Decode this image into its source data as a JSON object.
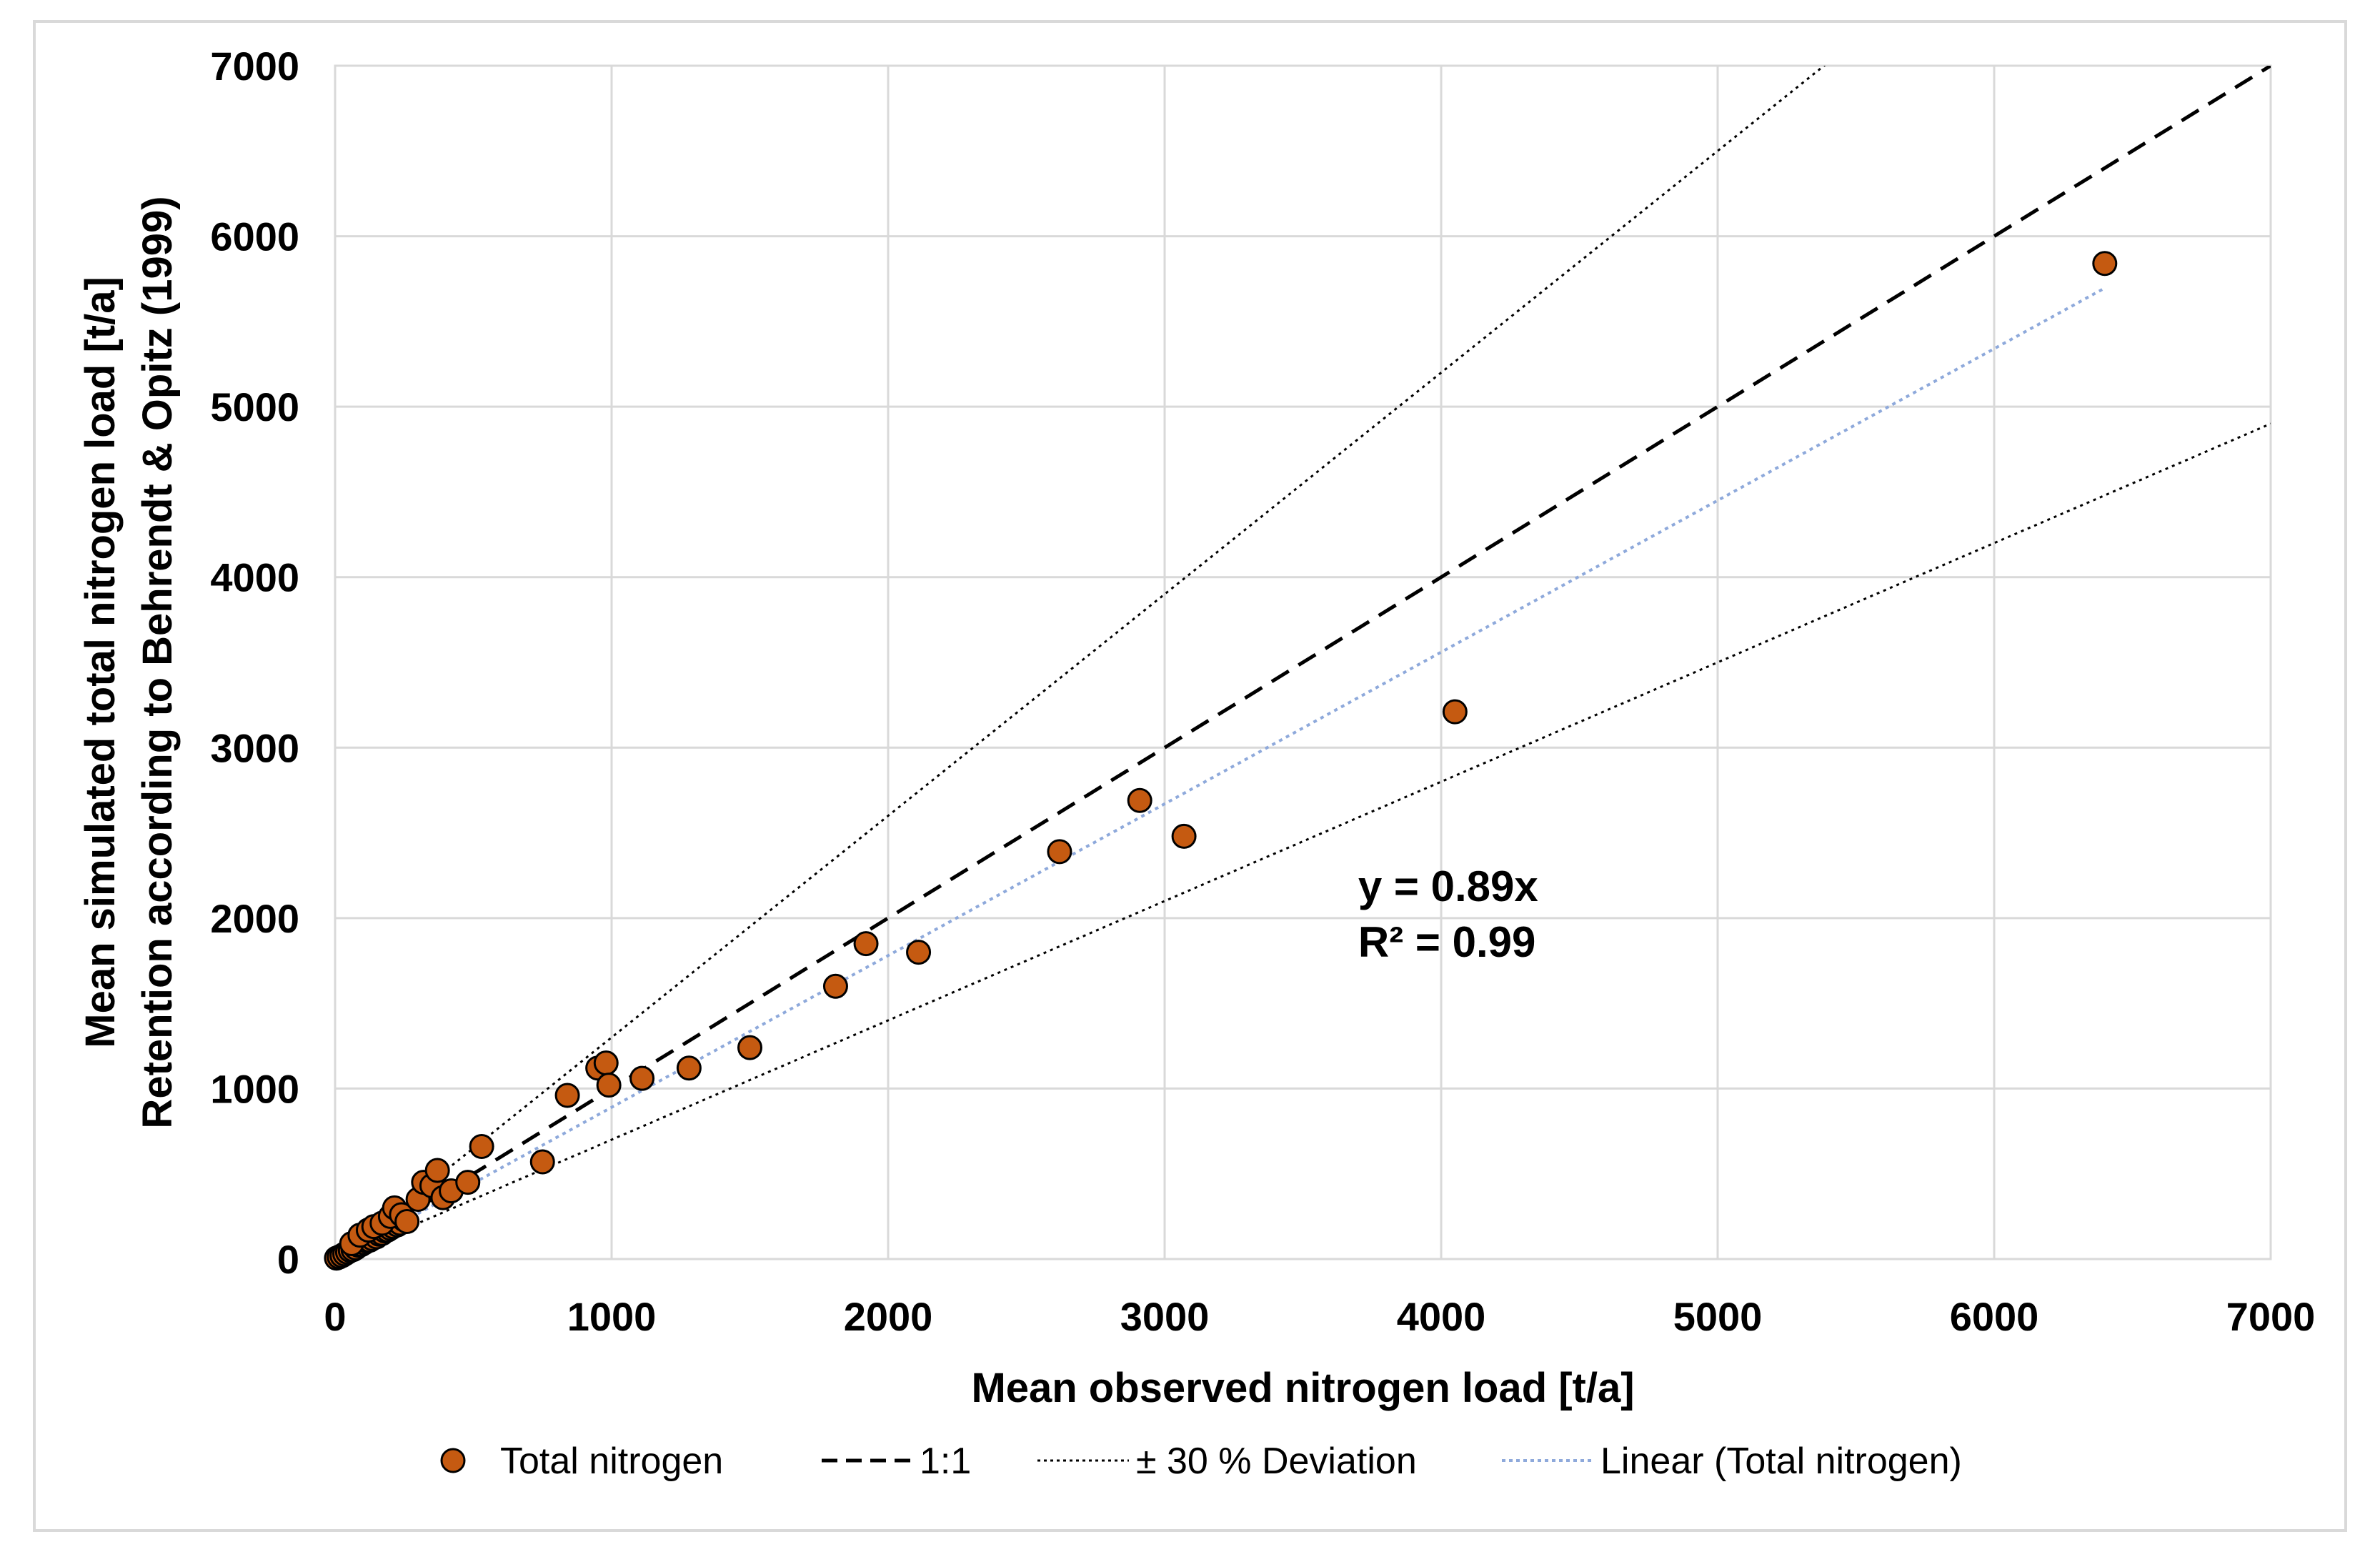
{
  "chart_data": {
    "type": "scatter",
    "title": "",
    "xlabel": "Mean observed nitrogen load [t/a]",
    "ylabel_line1": "Mean simulated total nitrogen load [t/a]",
    "ylabel_line2": "Retention according to Behrendt & Opitz (1999)",
    "xlim": [
      0,
      7000
    ],
    "ylim": [
      0,
      7000
    ],
    "xticks": [
      0,
      1000,
      2000,
      3000,
      4000,
      5000,
      6000,
      7000
    ],
    "yticks": [
      0,
      1000,
      2000,
      3000,
      4000,
      5000,
      6000,
      7000
    ],
    "grid": true,
    "legend_position": "bottom",
    "annotation": {
      "equation": "y = 0.89x",
      "r2": "R² = 0.99",
      "x": 3700,
      "y": 2100
    },
    "series": [
      {
        "name": "Total nitrogen",
        "kind": "points",
        "color": "#c55a11",
        "edge_color": "#000000",
        "points": [
          [
            5,
            5
          ],
          [
            15,
            12
          ],
          [
            25,
            20
          ],
          [
            35,
            30
          ],
          [
            45,
            40
          ],
          [
            55,
            50
          ],
          [
            65,
            55
          ],
          [
            75,
            65
          ],
          [
            85,
            80
          ],
          [
            95,
            85
          ],
          [
            105,
            95
          ],
          [
            115,
            105
          ],
          [
            125,
            110
          ],
          [
            135,
            120
          ],
          [
            150,
            130
          ],
          [
            160,
            145
          ],
          [
            170,
            150
          ],
          [
            180,
            165
          ],
          [
            190,
            170
          ],
          [
            200,
            180
          ],
          [
            210,
            190
          ],
          [
            225,
            200
          ],
          [
            235,
            210
          ],
          [
            250,
            230
          ],
          [
            60,
            90
          ],
          [
            90,
            140
          ],
          [
            120,
            170
          ],
          [
            140,
            190
          ],
          [
            170,
            210
          ],
          [
            200,
            250
          ],
          [
            215,
            300
          ],
          [
            240,
            260
          ],
          [
            260,
            220
          ],
          [
            300,
            350
          ],
          [
            320,
            450
          ],
          [
            350,
            430
          ],
          [
            370,
            520
          ],
          [
            390,
            360
          ],
          [
            420,
            400
          ],
          [
            480,
            450
          ],
          [
            530,
            660
          ],
          [
            750,
            570
          ],
          [
            840,
            960
          ],
          [
            950,
            1120
          ],
          [
            980,
            1150
          ],
          [
            990,
            1020
          ],
          [
            1110,
            1060
          ],
          [
            1280,
            1120
          ],
          [
            1500,
            1240
          ],
          [
            1810,
            1600
          ],
          [
            1920,
            1850
          ],
          [
            2110,
            1800
          ],
          [
            2620,
            2390
          ],
          [
            2910,
            2690
          ],
          [
            3070,
            2480
          ],
          [
            4050,
            3210
          ],
          [
            6400,
            5840
          ]
        ]
      },
      {
        "name": "1:1",
        "kind": "line",
        "dash": "dashed",
        "color": "#000000",
        "slope": 1.0
      },
      {
        "name": "± 30 % Deviation",
        "kind": "line",
        "dash": "dotted",
        "color": "#000000",
        "slopes": [
          1.3,
          0.7
        ]
      },
      {
        "name": "Linear (Total nitrogen)",
        "kind": "trendline",
        "dash": "dotted",
        "color": "#8ea9db",
        "slope": 0.89,
        "x_range": [
          0,
          6400
        ]
      }
    ]
  }
}
